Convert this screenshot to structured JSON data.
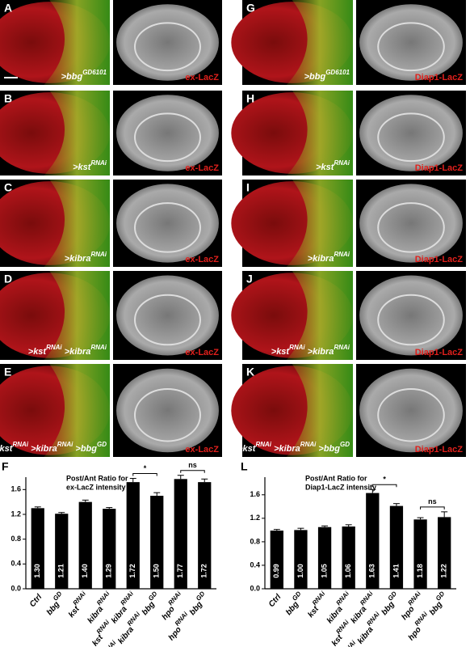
{
  "panels": [
    {
      "letter": "A",
      "genotype": [
        {
          "text": ">bbg",
          "sup": "GD6101"
        }
      ],
      "stain": "ex-LacZ"
    },
    {
      "letter": "B",
      "genotype": [
        {
          "text": ">kst",
          "sup": "RNAi"
        }
      ],
      "stain": "ex-LacZ"
    },
    {
      "letter": "C",
      "genotype": [
        {
          "text": ">kibra",
          "sup": "RNAi"
        }
      ],
      "stain": "ex-LacZ"
    },
    {
      "letter": "D",
      "genotype": [
        {
          "text": ">kst",
          "sup": "RNAi"
        },
        {
          "text": " >kibra",
          "sup": "RNAi"
        }
      ],
      "stain": "ex-LacZ"
    },
    {
      "letter": "E",
      "genotype": [
        {
          "text": ">kst",
          "sup": "RNAi"
        },
        {
          "text": " >kibra",
          "sup": "RNAi"
        },
        {
          "text": " >bbg",
          "sup": "GD"
        }
      ],
      "stain": "ex-LacZ"
    },
    {
      "letter": "G",
      "genotype": [
        {
          "text": ">bbg",
          "sup": "GD6101"
        }
      ],
      "stain": "Diap1-LacZ"
    },
    {
      "letter": "H",
      "genotype": [
        {
          "text": ">kst",
          "sup": "RNAi"
        }
      ],
      "stain": "Diap1-LacZ"
    },
    {
      "letter": "I",
      "genotype": [
        {
          "text": ">kibra",
          "sup": "RNAi"
        }
      ],
      "stain": "Diap1-LacZ"
    },
    {
      "letter": "J",
      "genotype": [
        {
          "text": ">kst",
          "sup": "RNAi"
        },
        {
          "text": " >kibra",
          "sup": "RNAi"
        }
      ],
      "stain": "Diap1-LacZ"
    },
    {
      "letter": "K",
      "genotype": [
        {
          "text": ">kst",
          "sup": "RNAi"
        },
        {
          "text": " >kibra",
          "sup": "RNAi"
        },
        {
          "text": " >bbg",
          "sup": "GD"
        }
      ],
      "stain": "Diap1-LacZ"
    }
  ],
  "chart_data": [
    {
      "type": "bar",
      "panel_label": "F",
      "title": [
        "Post/Ant Ratio for",
        "ex-LacZ intensity"
      ],
      "categories": [
        [
          {
            "text": "Ctrl"
          }
        ],
        [
          {
            "text": "bbg",
            "sup": "GD"
          }
        ],
        [
          {
            "text": "kst",
            "sup": "RNAi"
          }
        ],
        [
          {
            "text": "kibra",
            "sup": "RNAi"
          }
        ],
        [
          {
            "text": "kst",
            "sup": "RNAi"
          },
          {
            "text": " kibra",
            "sup": "RNAi"
          }
        ],
        [
          {
            "text": "kst",
            "sup": "RNAi"
          },
          {
            "text": " kibra",
            "sup": "RNAi"
          },
          {
            "text": " bbg",
            "sup": "GD"
          }
        ],
        [
          {
            "text": "hpo",
            "sup": "RNAi"
          }
        ],
        [
          {
            "text": "hpo",
            "sup": "RNAi"
          },
          {
            "text": " bbg",
            "sup": "GD"
          }
        ]
      ],
      "values": [
        1.3,
        1.21,
        1.4,
        1.29,
        1.72,
        1.5,
        1.77,
        1.72
      ],
      "value_labels": [
        "1.30",
        "1.21",
        "1.40",
        "1.29",
        "1.72",
        "1.50",
        "1.77",
        "1.72"
      ],
      "errors": [
        0.02,
        0.02,
        0.03,
        0.02,
        0.06,
        0.05,
        0.06,
        0.05
      ],
      "color": "#000000",
      "annotations": [
        "*",
        "ns"
      ],
      "ylim": [
        0,
        1.8
      ],
      "yticks": [
        {
          "value": 0,
          "label": "0.0"
        },
        {
          "value": 0.4,
          "label": "0.4"
        },
        {
          "value": 0.8,
          "label": "0.8"
        },
        {
          "value": 1.2,
          "label": "1.2"
        },
        {
          "value": 1.6,
          "label": "1.6"
        }
      ]
    },
    {
      "type": "bar",
      "panel_label": "L",
      "title": [
        "Post/Ant Ratio for",
        "Diap1-LacZ intensity"
      ],
      "categories": [
        [
          {
            "text": "Ctrl"
          }
        ],
        [
          {
            "text": "bbg",
            "sup": "GD"
          }
        ],
        [
          {
            "text": "kst",
            "sup": "RNAi"
          }
        ],
        [
          {
            "text": "kibra",
            "sup": "RNAi"
          }
        ],
        [
          {
            "text": "kst",
            "sup": "RNAi"
          },
          {
            "text": " kibra",
            "sup": "RNAi"
          }
        ],
        [
          {
            "text": "kst",
            "sup": "RNAi"
          },
          {
            "text": " kibra",
            "sup": "RNAi"
          },
          {
            "text": " bbg",
            "sup": "GD"
          }
        ],
        [
          {
            "text": "hpo",
            "sup": "RNAi"
          }
        ],
        [
          {
            "text": "hpo",
            "sup": "RNAi"
          },
          {
            "text": " bbg",
            "sup": "GD"
          }
        ]
      ],
      "values": [
        0.99,
        1.0,
        1.05,
        1.06,
        1.63,
        1.41,
        1.18,
        1.22
      ],
      "value_labels": [
        "0.99",
        "1.00",
        "1.05",
        "1.06",
        "1.63",
        "1.41",
        "1.18",
        "1.22"
      ],
      "errors": [
        0.02,
        0.03,
        0.02,
        0.03,
        0.06,
        0.04,
        0.03,
        0.09
      ],
      "color": "#000000",
      "annotations": [
        "*",
        "ns"
      ],
      "ylim": [
        0,
        1.9
      ],
      "yticks": [
        {
          "value": 0,
          "label": "0.0"
        },
        {
          "value": 0.4,
          "label": "0.4"
        },
        {
          "value": 0.8,
          "label": "0.8"
        },
        {
          "value": 1.2,
          "label": "1.2"
        },
        {
          "value": 1.6,
          "label": "1.6"
        }
      ]
    }
  ]
}
